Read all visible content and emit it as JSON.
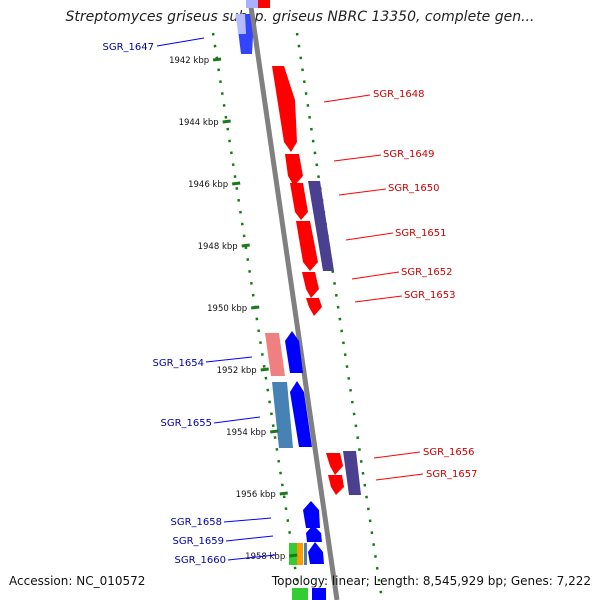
{
  "title": "Streptomyces griseus subsp. griseus NBRC 13350, complete gen...",
  "accession": "Accession: NC_010572",
  "topology": "Topology: linear; Length: 8,545,929 bp; Genes: 7,222",
  "colors": {
    "axis": "#808080",
    "tick": "#1a7a1a",
    "forward": "#ff0000",
    "reverse": "#0000ff",
    "forward_label": "#cc0000",
    "reverse_label": "#0000aa",
    "purple": "#4b3f8f",
    "steel_blue": "#4682b4",
    "pink": "#f08080",
    "green": "#33cc33",
    "orange": "#ff9900"
  },
  "scale_labels": [
    "1942 kbp",
    "1944 kbp",
    "1946 kbp",
    "1948 kbp",
    "1950 kbp",
    "1952 kbp",
    "1954 kbp",
    "1956 kbp",
    "1958 kbp"
  ],
  "left_genes": [
    "SGR_1647",
    "SGR_1654",
    "SGR_1655",
    "SGR_1658",
    "SGR_1659",
    "SGR_1660"
  ],
  "right_genes": [
    "SGR_1648",
    "SGR_1649",
    "SGR_1650",
    "SGR_1651",
    "SGR_1652",
    "SGR_1653",
    "SGR_1656",
    "SGR_1657"
  ]
}
